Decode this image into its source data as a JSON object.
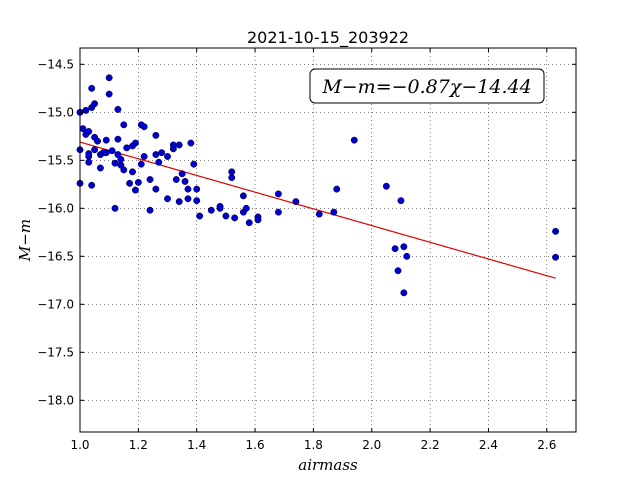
{
  "chart_data": {
    "type": "scatter",
    "title": "2021-10-15_203922",
    "xlabel": "airmass",
    "ylabel": "M−m",
    "xlim": [
      1.0,
      2.7
    ],
    "ylim": [
      -18.33,
      -14.33
    ],
    "y_inverted": false,
    "grid": true,
    "xticks": [
      1.0,
      1.2,
      1.4,
      1.6,
      1.8,
      2.0,
      2.2,
      2.4,
      2.6
    ],
    "xtick_labels": [
      "1.0",
      "1.2",
      "1.4",
      "1.6",
      "1.8",
      "2.0",
      "2.2",
      "2.4",
      "2.6"
    ],
    "yticks": [
      -14.5,
      -15.0,
      -15.5,
      -16.0,
      -16.5,
      -17.0,
      -17.5,
      -18.0
    ],
    "ytick_labels": [
      "−14.5",
      "−15.0",
      "−15.5",
      "−16.0",
      "−16.5",
      "−17.0",
      "−17.5",
      "−18.0"
    ],
    "annotation": "M−m=−0.87χ−14.44",
    "fit": {
      "slope": -0.87,
      "intercept": -14.44,
      "x_range": [
        1.0,
        2.63
      ],
      "color": "#e00000"
    },
    "marker_color": "#0000cc",
    "points": [
      [
        1.0,
        -15.74
      ],
      [
        1.0,
        -15.39
      ],
      [
        1.0,
        -15.0
      ],
      [
        1.01,
        -15.17
      ],
      [
        1.02,
        -15.23
      ],
      [
        1.02,
        -14.98
      ],
      [
        1.03,
        -15.46
      ],
      [
        1.03,
        -15.43
      ],
      [
        1.03,
        -15.52
      ],
      [
        1.03,
        -15.2
      ],
      [
        1.04,
        -15.76
      ],
      [
        1.04,
        -14.95
      ],
      [
        1.04,
        -14.75
      ],
      [
        1.05,
        -15.26
      ],
      [
        1.05,
        -14.91
      ],
      [
        1.05,
        -15.39
      ],
      [
        1.06,
        -15.3
      ],
      [
        1.07,
        -15.58
      ],
      [
        1.07,
        -15.44
      ],
      [
        1.08,
        -15.42
      ],
      [
        1.09,
        -15.42
      ],
      [
        1.09,
        -15.29
      ],
      [
        1.1,
        -14.64
      ],
      [
        1.1,
        -14.81
      ],
      [
        1.11,
        -15.4
      ],
      [
        1.12,
        -16.0
      ],
      [
        1.12,
        -15.53
      ],
      [
        1.13,
        -15.44
      ],
      [
        1.13,
        -14.97
      ],
      [
        1.13,
        -15.28
      ],
      [
        1.14,
        -15.49
      ],
      [
        1.14,
        -15.55
      ],
      [
        1.15,
        -15.6
      ],
      [
        1.15,
        -15.13
      ],
      [
        1.16,
        -15.37
      ],
      [
        1.17,
        -15.74
      ],
      [
        1.18,
        -15.62
      ],
      [
        1.18,
        -15.35
      ],
      [
        1.19,
        -15.32
      ],
      [
        1.19,
        -15.81
      ],
      [
        1.2,
        -15.73
      ],
      [
        1.21,
        -15.54
      ],
      [
        1.21,
        -15.13
      ],
      [
        1.22,
        -15.46
      ],
      [
        1.22,
        -15.15
      ],
      [
        1.24,
        -16.02
      ],
      [
        1.24,
        -15.7
      ],
      [
        1.26,
        -15.8
      ],
      [
        1.26,
        -15.44
      ],
      [
        1.26,
        -15.24
      ],
      [
        1.27,
        -15.52
      ],
      [
        1.28,
        -15.42
      ],
      [
        1.3,
        -15.46
      ],
      [
        1.3,
        -15.9
      ],
      [
        1.32,
        -15.38
      ],
      [
        1.32,
        -15.34
      ],
      [
        1.33,
        -15.7
      ],
      [
        1.34,
        -15.34
      ],
      [
        1.34,
        -15.93
      ],
      [
        1.35,
        -15.64
      ],
      [
        1.36,
        -15.72
      ],
      [
        1.37,
        -15.8
      ],
      [
        1.37,
        -15.9
      ],
      [
        1.38,
        -15.32
      ],
      [
        1.39,
        -15.54
      ],
      [
        1.4,
        -15.8
      ],
      [
        1.4,
        -15.92
      ],
      [
        1.41,
        -16.08
      ],
      [
        1.45,
        -16.02
      ],
      [
        1.48,
        -16.0
      ],
      [
        1.48,
        -15.98
      ],
      [
        1.5,
        -16.08
      ],
      [
        1.52,
        -15.68
      ],
      [
        1.52,
        -15.62
      ],
      [
        1.53,
        -16.1
      ],
      [
        1.56,
        -16.04
      ],
      [
        1.56,
        -15.87
      ],
      [
        1.57,
        -16.0
      ],
      [
        1.58,
        -16.15
      ],
      [
        1.61,
        -16.09
      ],
      [
        1.61,
        -16.12
      ],
      [
        1.68,
        -16.04
      ],
      [
        1.68,
        -15.85
      ],
      [
        1.74,
        -15.93
      ],
      [
        1.82,
        -16.06
      ],
      [
        1.87,
        -16.04
      ],
      [
        1.88,
        -15.8
      ],
      [
        1.94,
        -15.29
      ],
      [
        2.05,
        -15.77
      ],
      [
        2.08,
        -16.42
      ],
      [
        2.09,
        -16.65
      ],
      [
        2.1,
        -15.92
      ],
      [
        2.11,
        -16.4
      ],
      [
        2.11,
        -16.88
      ],
      [
        2.12,
        -16.5
      ],
      [
        2.63,
        -16.24
      ],
      [
        2.63,
        -16.51
      ]
    ]
  }
}
